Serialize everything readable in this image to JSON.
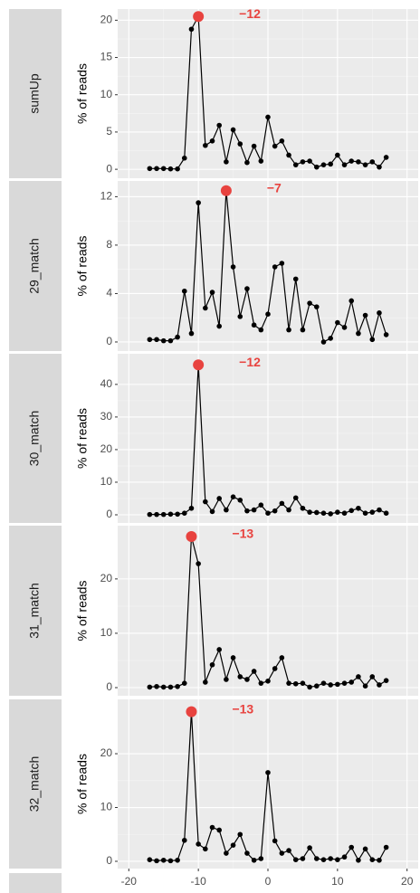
{
  "chart_data": [
    {
      "type": "line",
      "strip": "sumUp",
      "ylabel": "% of reads",
      "x": [
        -17,
        -16,
        -15,
        -14,
        -13,
        -12,
        -11,
        -10,
        -9,
        -8,
        -7,
        -6,
        -5,
        -4,
        -3,
        -2,
        -1,
        0,
        1,
        2,
        3,
        4,
        5,
        6,
        7,
        8,
        9,
        10,
        11,
        12,
        13,
        14,
        15,
        16,
        17
      ],
      "series": [
        {
          "color": "#000000",
          "values": [
            0.1,
            0.1,
            0.1,
            0.05,
            0.05,
            1.5,
            18.8,
            20.5,
            3.2,
            3.8,
            5.9,
            1.0,
            5.3,
            3.4,
            0.9,
            3.1,
            1.1,
            7.0,
            3.1,
            3.8,
            1.9,
            0.6,
            1.0,
            1.1,
            0.3,
            0.6,
            0.7,
            1.9,
            0.6,
            1.1,
            1.0,
            0.6,
            1.0,
            0.3,
            1.6
          ]
        }
      ],
      "highlight": {
        "x": -10,
        "value": 20.5,
        "color": "#e8433f"
      },
      "annotation": "−12",
      "annotation_color": "#e8433f",
      "xlim": [
        -21.6,
        21.6
      ],
      "xticks": [
        -20,
        -10,
        0,
        10,
        20
      ],
      "ylim": [
        -1.2,
        21.5
      ],
      "yticks": [
        0,
        5,
        10,
        15,
        20
      ]
    },
    {
      "type": "line",
      "strip": "29_match",
      "ylabel": "% of reads",
      "x": [
        -17,
        -16,
        -15,
        -14,
        -13,
        -12,
        -11,
        -10,
        -9,
        -8,
        -7,
        -6,
        -5,
        -4,
        -3,
        -2,
        -1,
        0,
        1,
        2,
        3,
        4,
        5,
        6,
        7,
        8,
        9,
        10,
        11,
        12,
        13,
        14,
        15,
        16,
        17
      ],
      "series": [
        {
          "color": "#000000",
          "values": [
            0.2,
            0.2,
            0.1,
            0.1,
            0.4,
            4.2,
            0.7,
            11.5,
            2.8,
            4.1,
            1.3,
            12.5,
            6.2,
            2.1,
            4.4,
            1.4,
            1.0,
            2.3,
            6.2,
            6.5,
            1.0,
            5.2,
            1.0,
            3.2,
            2.9,
            0.0,
            0.3,
            1.6,
            1.2,
            3.4,
            0.7,
            2.2,
            0.2,
            2.4,
            0.6
          ]
        }
      ],
      "highlight": {
        "x": -6,
        "value": 12.5,
        "color": "#e8433f"
      },
      "annotation": "−7",
      "annotation_color": "#e8433f",
      "xlim": [
        -21.6,
        21.6
      ],
      "xticks": [
        -20,
        -10,
        0,
        10,
        20
      ],
      "ylim": [
        -0.75,
        13.3
      ],
      "yticks": [
        0,
        4,
        8,
        12
      ]
    },
    {
      "type": "line",
      "strip": "30_match",
      "ylabel": "% of reads",
      "x": [
        -17,
        -16,
        -15,
        -14,
        -13,
        -12,
        -11,
        -10,
        -9,
        -8,
        -7,
        -6,
        -5,
        -4,
        -3,
        -2,
        -1,
        0,
        1,
        2,
        3,
        4,
        5,
        6,
        7,
        8,
        9,
        10,
        11,
        12,
        13,
        14,
        15,
        16,
        17
      ],
      "series": [
        {
          "color": "#000000",
          "values": [
            0.1,
            0.1,
            0.1,
            0.2,
            0.2,
            0.5,
            2.0,
            46,
            4.0,
            1.0,
            5.0,
            1.5,
            5.5,
            4.5,
            1.2,
            1.5,
            3.0,
            0.5,
            1.2,
            3.5,
            1.5,
            5.2,
            2.0,
            0.8,
            0.7,
            0.5,
            0.3,
            0.8,
            0.5,
            1.3,
            2.0,
            0.5,
            0.8,
            1.5,
            0.5
          ]
        }
      ],
      "highlight": {
        "x": -10,
        "value": 46,
        "color": "#e8433f"
      },
      "annotation": "−12",
      "annotation_color": "#e8433f",
      "xlim": [
        -21.6,
        21.6
      ],
      "xticks": [
        -20,
        -10,
        0,
        10,
        20
      ],
      "ylim": [
        -2.5,
        49.4
      ],
      "yticks": [
        0,
        10,
        20,
        30,
        40
      ]
    },
    {
      "type": "line",
      "strip": "31_match",
      "ylabel": "% of reads",
      "x": [
        -17,
        -16,
        -15,
        -14,
        -13,
        -12,
        -11,
        -10,
        -9,
        -8,
        -7,
        -6,
        -5,
        -4,
        -3,
        -2,
        -1,
        0,
        1,
        2,
        3,
        4,
        5,
        6,
        7,
        8,
        9,
        10,
        11,
        12,
        13,
        14,
        15,
        16,
        17
      ],
      "series": [
        {
          "color": "#000000",
          "values": [
            0.1,
            0.2,
            0.1,
            0.1,
            0.2,
            0.8,
            27.8,
            22.8,
            1.0,
            4.2,
            7.0,
            1.5,
            5.5,
            2.0,
            1.5,
            3.0,
            0.8,
            1.2,
            3.5,
            5.5,
            0.8,
            0.7,
            0.8,
            0.1,
            0.3,
            0.8,
            0.5,
            0.6,
            0.8,
            1.0,
            2.0,
            0.3,
            2.0,
            0.5,
            1.3
          ]
        }
      ],
      "highlight": {
        "x": -11,
        "value": 27.8,
        "color": "#e8433f"
      },
      "annotation": "−13",
      "annotation_color": "#e8433f",
      "xlim": [
        -21.6,
        21.6
      ],
      "xticks": [
        -20,
        -10,
        0,
        10,
        20
      ],
      "ylim": [
        -1.5,
        29.8
      ],
      "yticks": [
        0,
        10,
        20
      ]
    },
    {
      "type": "line",
      "strip": "32_match",
      "ylabel": "% of reads",
      "x": [
        -17,
        -16,
        -15,
        -14,
        -13,
        -12,
        -11,
        -10,
        -9,
        -8,
        -7,
        -6,
        -5,
        -4,
        -3,
        -2,
        -1,
        0,
        1,
        2,
        3,
        4,
        5,
        6,
        7,
        8,
        9,
        10,
        11,
        12,
        13,
        14,
        15,
        16,
        17
      ],
      "series": [
        {
          "color": "#000000",
          "values": [
            0.3,
            0.1,
            0.2,
            0.1,
            0.2,
            3.9,
            27.8,
            3.2,
            2.3,
            6.3,
            5.8,
            1.5,
            3.0,
            5.0,
            1.5,
            0.2,
            0.5,
            16.5,
            3.8,
            1.5,
            2.0,
            0.3,
            0.5,
            2.5,
            0.5,
            0.3,
            0.5,
            0.3,
            0.8,
            2.6,
            0.2,
            2.3,
            0.3,
            0.2,
            2.6
          ]
        }
      ],
      "highlight": {
        "x": -11,
        "value": 27.8,
        "color": "#e8433f"
      },
      "annotation": "−13",
      "annotation_color": "#e8433f",
      "xlim": [
        -21.6,
        21.6
      ],
      "xticks": [
        -20,
        -10,
        0,
        10,
        20
      ],
      "ylim": [
        -1.35,
        30.1
      ],
      "yticks": [
        0,
        10,
        20
      ]
    }
  ]
}
